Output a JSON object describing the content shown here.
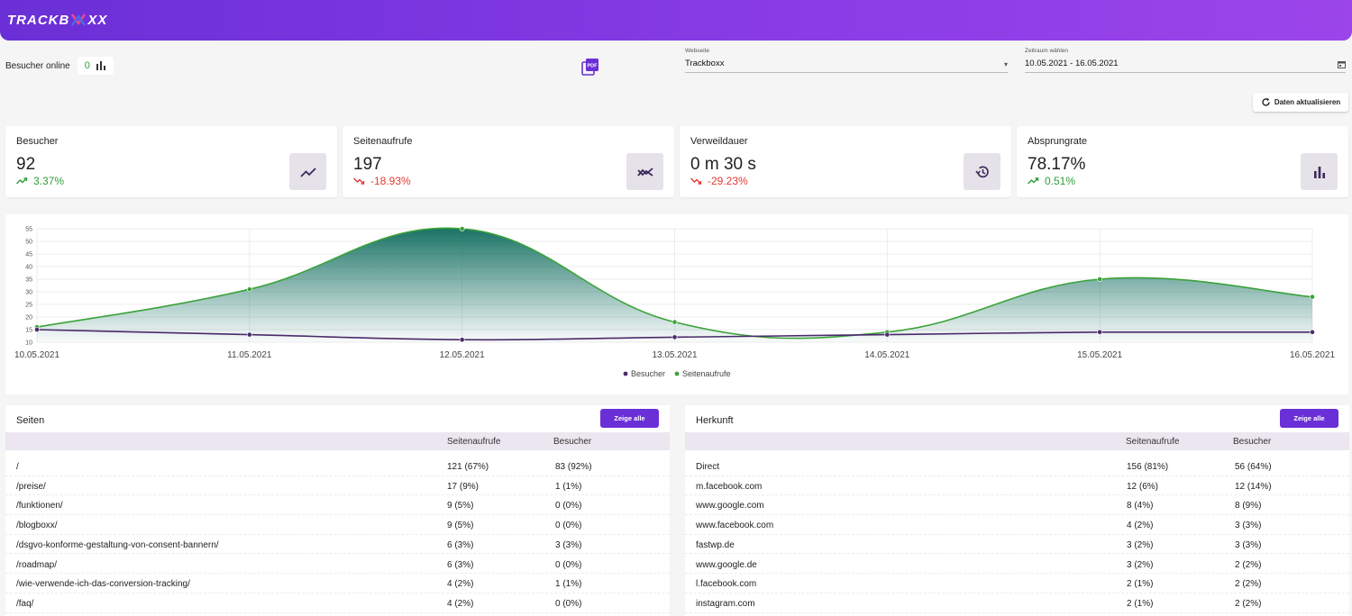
{
  "header": {
    "logo_left": "TRACKB",
    "logo_right": "XX"
  },
  "online": {
    "label": "Besucher online",
    "count": "0"
  },
  "website_field": {
    "label": "Webseite",
    "value": "Trackboxx"
  },
  "date_field": {
    "label": "Zeitraum wählen",
    "value": "10.05.2021 - 16.05.2021"
  },
  "refresh_button": "Daten aktualisieren",
  "stats": [
    {
      "title": "Besucher",
      "value": "92",
      "change": "3.37%",
      "trend": "up",
      "icon": "trending-up-icon"
    },
    {
      "title": "Seitenaufrufe",
      "value": "197",
      "change": "-18.93%",
      "trend": "down",
      "icon": "multiline-chart-icon"
    },
    {
      "title": "Verweildauer",
      "value": "0 m 30 s",
      "change": "-29.23%",
      "trend": "down",
      "icon": "history-icon"
    },
    {
      "title": "Absprungrate",
      "value": "78.17%",
      "change": "0.51%",
      "trend": "up",
      "icon": "bar-chart-icon"
    }
  ],
  "chart_data": {
    "type": "line",
    "x": [
      "10.05.2021",
      "11.05.2021",
      "12.05.2021",
      "13.05.2021",
      "14.05.2021",
      "15.05.2021",
      "16.05.2021"
    ],
    "ylim": [
      10,
      55
    ],
    "yticks": [
      10,
      15,
      20,
      25,
      30,
      35,
      40,
      45,
      50,
      55
    ],
    "grid": true,
    "legend_position": "bottom",
    "series": [
      {
        "name": "Besucher",
        "values": [
          15,
          13,
          11,
          12,
          13,
          14,
          14
        ],
        "color": "#4a2a6a",
        "fill": false
      },
      {
        "name": "Seitenaufrufe",
        "values": [
          16,
          31,
          55,
          18,
          14,
          35,
          28
        ],
        "color": "#3aa23a",
        "fill": true
      }
    ]
  },
  "pages_panel": {
    "title": "Seiten",
    "button": "Zeige alle",
    "columns": [
      "Seitenaufrufe",
      "Besucher"
    ],
    "rows": [
      {
        "name": "/",
        "views": "121 (67%)",
        "visitors": "83 (92%)"
      },
      {
        "name": "/preise/",
        "views": "17 (9%)",
        "visitors": "1 (1%)"
      },
      {
        "name": "/funktionen/",
        "views": "9 (5%)",
        "visitors": "0 (0%)"
      },
      {
        "name": "/blogboxx/",
        "views": "9 (5%)",
        "visitors": "0 (0%)"
      },
      {
        "name": "/dsgvo-konforme-gestaltung-von-consent-bannern/",
        "views": "6 (3%)",
        "visitors": "3 (3%)"
      },
      {
        "name": "/roadmap/",
        "views": "6 (3%)",
        "visitors": "0 (0%)"
      },
      {
        "name": "/wie-verwende-ich-das-conversion-tracking/",
        "views": "4 (2%)",
        "visitors": "1 (1%)"
      },
      {
        "name": "/faq/",
        "views": "4 (2%)",
        "visitors": "0 (0%)"
      }
    ]
  },
  "origin_panel": {
    "title": "Herkunft",
    "button": "Zeige alle",
    "columns": [
      "Seitenaufrufe",
      "Besucher"
    ],
    "rows": [
      {
        "name": "Direct",
        "views": "156 (81%)",
        "visitors": "56 (64%)"
      },
      {
        "name": "m.facebook.com",
        "views": "12 (6%)",
        "visitors": "12 (14%)"
      },
      {
        "name": "www.google.com",
        "views": "8 (4%)",
        "visitors": "8 (9%)"
      },
      {
        "name": "www.facebook.com",
        "views": "4 (2%)",
        "visitors": "3 (3%)"
      },
      {
        "name": "fastwp.de",
        "views": "3 (2%)",
        "visitors": "3 (3%)"
      },
      {
        "name": "www.google.de",
        "views": "3 (2%)",
        "visitors": "2 (2%)"
      },
      {
        "name": "l.facebook.com",
        "views": "2 (1%)",
        "visitors": "2 (2%)"
      },
      {
        "name": "instagram.com",
        "views": "2 (1%)",
        "visitors": "2 (2%)"
      }
    ]
  }
}
